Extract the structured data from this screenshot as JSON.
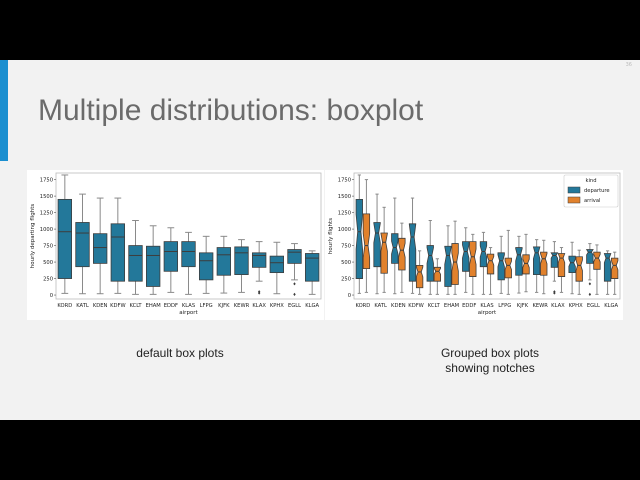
{
  "slide": {
    "title": "Multiple distributions: boxplot",
    "slide_number": "36",
    "accent_color": "#1b8fd0",
    "captions": {
      "left": "default box plots",
      "right_line1": "Grouped box plots",
      "right_line2": "showing notches"
    }
  },
  "chart_data": [
    {
      "type": "boxplot",
      "title": "",
      "xlabel": "airport",
      "ylabel": "hourly departing flights",
      "ylim": [
        -60,
        1850
      ],
      "yticks": [
        0,
        250,
        500,
        750,
        1000,
        1250,
        1500,
        1750
      ],
      "categories": [
        "KORD",
        "KATL",
        "KDEN",
        "KDFW",
        "KCLT",
        "EHAM",
        "EDDF",
        "KLAS",
        "LFPG",
        "KJFK",
        "KEWR",
        "KLAX",
        "KPHX",
        "EGLL",
        "KLGA"
      ],
      "notch": false,
      "series": [
        {
          "color": "#23789a",
          "boxes": [
            {
              "whislo": 25,
              "q1": 250,
              "med": 960,
              "q3": 1450,
              "whishi": 1820,
              "fliers": []
            },
            {
              "whislo": 20,
              "q1": 430,
              "med": 940,
              "q3": 1100,
              "whishi": 1530,
              "fliers": []
            },
            {
              "whislo": 20,
              "q1": 480,
              "med": 720,
              "q3": 930,
              "whishi": 1470,
              "fliers": []
            },
            {
              "whislo": 25,
              "q1": 210,
              "med": 880,
              "q3": 1080,
              "whishi": 1470,
              "fliers": []
            },
            {
              "whislo": 10,
              "q1": 210,
              "med": 600,
              "q3": 750,
              "whishi": 1130,
              "fliers": []
            },
            {
              "whislo": 10,
              "q1": 130,
              "med": 600,
              "q3": 740,
              "whishi": 1050,
              "fliers": []
            },
            {
              "whislo": 40,
              "q1": 360,
              "med": 660,
              "q3": 810,
              "whishi": 1020,
              "fliers": []
            },
            {
              "whislo": 10,
              "q1": 430,
              "med": 660,
              "q3": 810,
              "whishi": 950,
              "fliers": []
            },
            {
              "whislo": 25,
              "q1": 230,
              "med": 520,
              "q3": 640,
              "whishi": 890,
              "fliers": []
            },
            {
              "whislo": 30,
              "q1": 300,
              "med": 610,
              "q3": 720,
              "whishi": 890,
              "fliers": []
            },
            {
              "whislo": 40,
              "q1": 310,
              "med": 640,
              "q3": 730,
              "whishi": 840,
              "fliers": []
            },
            {
              "whislo": 210,
              "q1": 420,
              "med": 600,
              "q3": 640,
              "whishi": 810,
              "fliers": [
                30,
                50
              ]
            },
            {
              "whislo": 20,
              "q1": 340,
              "med": 490,
              "q3": 590,
              "whishi": 800,
              "fliers": []
            },
            {
              "whislo": 230,
              "q1": 480,
              "med": 650,
              "q3": 690,
              "whishi": 780,
              "fliers": [
                10,
                170
              ]
            },
            {
              "whislo": 10,
              "q1": 210,
              "med": 560,
              "q3": 630,
              "whishi": 670,
              "fliers": []
            }
          ]
        }
      ]
    },
    {
      "type": "boxplot",
      "title": "",
      "xlabel": "airport",
      "ylabel": "hourly flights",
      "ylim": [
        -60,
        1850
      ],
      "yticks": [
        0,
        250,
        500,
        750,
        1000,
        1250,
        1500,
        1750
      ],
      "categories": [
        "KORD",
        "KATL",
        "KDEN",
        "KDFW",
        "KCLT",
        "EHAM",
        "EDDF",
        "KLAS",
        "LFPG",
        "KJFK",
        "KEWR",
        "KLAX",
        "KPHX",
        "EGLL",
        "KLGA"
      ],
      "notch": true,
      "legend": {
        "title": "kind",
        "placement": "top-right"
      },
      "series": [
        {
          "name": "departure",
          "color": "#23789a",
          "boxes": [
            {
              "whislo": 25,
              "q1": 250,
              "med": 960,
              "q3": 1450,
              "whishi": 1820,
              "fliers": []
            },
            {
              "whislo": 20,
              "q1": 430,
              "med": 940,
              "q3": 1100,
              "whishi": 1530,
              "fliers": []
            },
            {
              "whislo": 20,
              "q1": 480,
              "med": 720,
              "q3": 930,
              "whishi": 1470,
              "fliers": []
            },
            {
              "whislo": 25,
              "q1": 210,
              "med": 880,
              "q3": 1080,
              "whishi": 1470,
              "fliers": []
            },
            {
              "whislo": 10,
              "q1": 210,
              "med": 600,
              "q3": 750,
              "whishi": 1130,
              "fliers": []
            },
            {
              "whislo": 10,
              "q1": 130,
              "med": 600,
              "q3": 740,
              "whishi": 1050,
              "fliers": []
            },
            {
              "whislo": 40,
              "q1": 360,
              "med": 660,
              "q3": 810,
              "whishi": 1020,
              "fliers": []
            },
            {
              "whislo": 10,
              "q1": 430,
              "med": 660,
              "q3": 810,
              "whishi": 950,
              "fliers": []
            },
            {
              "whislo": 25,
              "q1": 230,
              "med": 520,
              "q3": 640,
              "whishi": 890,
              "fliers": []
            },
            {
              "whislo": 30,
              "q1": 300,
              "med": 610,
              "q3": 720,
              "whishi": 890,
              "fliers": []
            },
            {
              "whislo": 40,
              "q1": 310,
              "med": 640,
              "q3": 730,
              "whishi": 840,
              "fliers": []
            },
            {
              "whislo": 210,
              "q1": 420,
              "med": 600,
              "q3": 640,
              "whishi": 810,
              "fliers": [
                30,
                50
              ]
            },
            {
              "whislo": 20,
              "q1": 340,
              "med": 490,
              "q3": 590,
              "whishi": 800,
              "fliers": []
            },
            {
              "whislo": 230,
              "q1": 480,
              "med": 650,
              "q3": 690,
              "whishi": 780,
              "fliers": [
                10,
                170
              ]
            },
            {
              "whislo": 10,
              "q1": 210,
              "med": 560,
              "q3": 630,
              "whishi": 670,
              "fliers": []
            }
          ]
        },
        {
          "name": "arrival",
          "color": "#e1812c",
          "boxes": [
            {
              "whislo": 40,
              "q1": 400,
              "med": 750,
              "q3": 1230,
              "whishi": 1750,
              "fliers": []
            },
            {
              "whislo": 40,
              "q1": 330,
              "med": 800,
              "q3": 940,
              "whishi": 1330,
              "fliers": []
            },
            {
              "whislo": 40,
              "q1": 380,
              "med": 680,
              "q3": 860,
              "whishi": 1090,
              "fliers": []
            },
            {
              "whislo": 10,
              "q1": 110,
              "med": 350,
              "q3": 450,
              "whishi": 670,
              "fliers": []
            },
            {
              "whislo": 10,
              "q1": 210,
              "med": 360,
              "q3": 420,
              "whishi": 550,
              "fliers": []
            },
            {
              "whislo": 10,
              "q1": 160,
              "med": 500,
              "q3": 780,
              "whishi": 1120,
              "fliers": []
            },
            {
              "whislo": 10,
              "q1": 280,
              "med": 580,
              "q3": 810,
              "whishi": 920,
              "fliers": []
            },
            {
              "whislo": 10,
              "q1": 320,
              "med": 520,
              "q3": 620,
              "whishi": 720,
              "fliers": []
            },
            {
              "whislo": 10,
              "q1": 260,
              "med": 450,
              "q3": 560,
              "whishi": 980,
              "fliers": []
            },
            {
              "whislo": 50,
              "q1": 320,
              "med": 480,
              "q3": 610,
              "whishi": 920,
              "fliers": []
            },
            {
              "whislo": 20,
              "q1": 300,
              "med": 550,
              "q3": 650,
              "whishi": 830,
              "fliers": []
            },
            {
              "whislo": 40,
              "q1": 280,
              "med": 560,
              "q3": 630,
              "whishi": 720,
              "fliers": []
            },
            {
              "whislo": 10,
              "q1": 210,
              "med": 450,
              "q3": 580,
              "whishi": 680,
              "fliers": []
            },
            {
              "whislo": 10,
              "q1": 390,
              "med": 560,
              "q3": 650,
              "whishi": 760,
              "fliers": []
            },
            {
              "whislo": 10,
              "q1": 250,
              "med": 450,
              "q3": 560,
              "whishi": 650,
              "fliers": []
            }
          ]
        }
      ]
    }
  ]
}
